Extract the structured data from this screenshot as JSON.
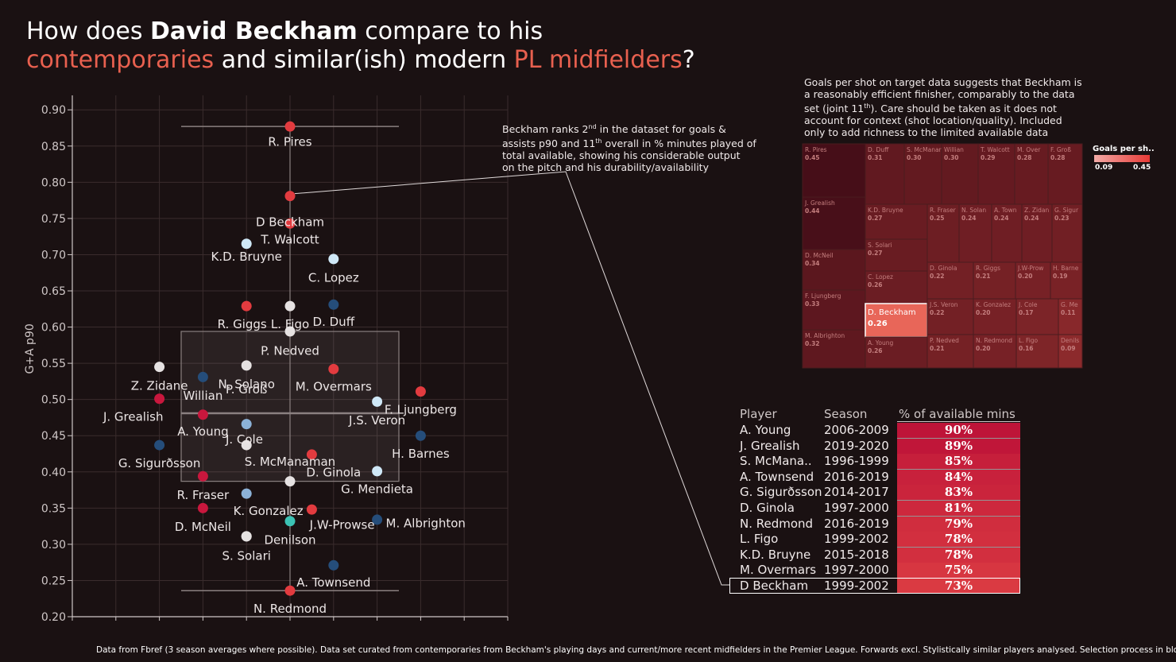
{
  "title": {
    "line1_pre": "How does ",
    "line1_bold": "David Beckham",
    "line1_post": " compare to his",
    "line2_acc1": "contemporaries",
    "line2_mid": " and similar(ish) modern ",
    "line2_acc2": "PL midfielders",
    "line2_end": "?"
  },
  "colors": {
    "background": "#1a1112",
    "accent": "#e8604f",
    "red": "#e23b3f",
    "crimson": "#c8173d",
    "navy": "#254d7a",
    "light_blue": "#cfe8f7",
    "white": "#e6e2e2",
    "teal": "#3cc3b5",
    "steel": "#8cb2d8"
  },
  "chart_data": {
    "type": "scatter",
    "ylabel": "G+A p90",
    "xlabel": "",
    "ylim": [
      0.2,
      0.92
    ],
    "xlim": [
      -5,
      5
    ],
    "yticks": [
      "0.20",
      "0.25",
      "0.30",
      "0.35",
      "0.40",
      "0.45",
      "0.50",
      "0.55",
      "0.60",
      "0.65",
      "0.70",
      "0.75",
      "0.80",
      "0.85",
      "0.90"
    ],
    "grid": true,
    "points": [
      {
        "name": "R. Pires",
        "x": 0,
        "y": 0.877,
        "color": "red",
        "label_dx": 0,
        "label_dy": 0.021,
        "anchor": "middle"
      },
      {
        "name": "D Beckham",
        "x": 0,
        "y": 0.781,
        "color": "red",
        "label_dx": 0,
        "label_dy": 0.036,
        "anchor": "middle"
      },
      {
        "name": "T. Walcott",
        "x": 0,
        "y": 0.743,
        "color": "red",
        "label_dx": 0,
        "label_dy": 0.022,
        "anchor": "middle"
      },
      {
        "name": "K.D. Bruyne",
        "x": -1,
        "y": 0.715,
        "color": "light_blue",
        "label_dx": 0,
        "label_dy": 0.018,
        "anchor": "middle"
      },
      {
        "name": "C. Lopez",
        "x": 1,
        "y": 0.694,
        "color": "light_blue",
        "label_dx": 0,
        "label_dy": 0.026,
        "anchor": "middle"
      },
      {
        "name": "R. Giggs",
        "x": -1,
        "y": 0.629,
        "color": "red",
        "label_dx": -0.1,
        "label_dy": 0.025,
        "anchor": "middle"
      },
      {
        "name": "L. Figo",
        "x": 0,
        "y": 0.629,
        "color": "white",
        "label_dx": 0,
        "label_dy": 0.025,
        "anchor": "middle"
      },
      {
        "name": "D. Duff",
        "x": 1,
        "y": 0.631,
        "color": "navy",
        "label_dx": 0,
        "label_dy": 0.024,
        "anchor": "middle"
      },
      {
        "name": "P. Nedved",
        "x": 0,
        "y": 0.594,
        "color": "white",
        "label_dx": 0,
        "label_dy": 0.027,
        "anchor": "middle"
      },
      {
        "name": "Z. Zidane",
        "x": -3,
        "y": 0.545,
        "color": "white",
        "label_dx": 0,
        "label_dy": 0.026,
        "anchor": "middle"
      },
      {
        "name": "N. Solano",
        "x": -1,
        "y": 0.547,
        "color": "white",
        "label_dx": 0,
        "label_dy": 0.026,
        "anchor": "middle"
      },
      {
        "name": "Willian",
        "x": -2,
        "y": 0.531,
        "color": "navy",
        "label_dx": 0,
        "label_dy": 0.026,
        "anchor": "middle"
      },
      {
        "name": "M. Overmars",
        "x": 1,
        "y": 0.542,
        "color": "red",
        "label_dx": 0,
        "label_dy": 0.024,
        "anchor": "middle"
      },
      {
        "name": "F. Ljungberg",
        "x": 3,
        "y": 0.511,
        "color": "red",
        "label_dx": 0,
        "label_dy": 0.025,
        "anchor": "middle"
      },
      {
        "name": "J. Grealish",
        "x": -3,
        "y": 0.501,
        "color": "crimson",
        "label_dx": -0.6,
        "label_dy": 0.025,
        "anchor": "middle"
      },
      {
        "name": "J.S. Veron",
        "x": 2,
        "y": 0.497,
        "color": "light_blue",
        "label_dx": 0,
        "label_dy": 0.026,
        "anchor": "middle"
      },
      {
        "name": "A. Young",
        "x": -2,
        "y": 0.479,
        "color": "crimson",
        "label_dx": 0,
        "label_dy": 0.023,
        "anchor": "middle"
      },
      {
        "name": "J. Cole",
        "x": -1,
        "y": 0.466,
        "color": "steel",
        "label_dx": -0.05,
        "label_dy": 0.021,
        "anchor": "middle"
      },
      {
        "name": "H. Barnes",
        "x": 3,
        "y": 0.45,
        "color": "navy",
        "label_dx": 0,
        "label_dy": 0.025,
        "anchor": "middle"
      },
      {
        "name": "G. Sigurðsson",
        "x": -3,
        "y": 0.437,
        "color": "navy",
        "label_dx": 0,
        "label_dy": 0.025,
        "anchor": "middle"
      },
      {
        "name": "D. Ginola",
        "x": 0.5,
        "y": 0.424,
        "color": "red",
        "label_dx": 0.5,
        "label_dy": 0.025,
        "anchor": "middle"
      },
      {
        "name": "S. McManaman",
        "x": 0,
        "y": 0.387,
        "color": "white",
        "label_dx": 0,
        "label_dy": -0.027,
        "anchor": "middle"
      },
      {
        "name": "G. Mendieta",
        "x": 2,
        "y": 0.401,
        "color": "light_blue",
        "label_dx": 0,
        "label_dy": 0.025,
        "anchor": "middle"
      },
      {
        "name": "R. Fraser",
        "x": -2,
        "y": 0.394,
        "color": "crimson",
        "label_dx": 0,
        "label_dy": 0.026,
        "anchor": "middle"
      },
      {
        "name": "K. Gonzalez",
        "x": -1,
        "y": 0.37,
        "color": "steel",
        "label_dx": 0.5,
        "label_dy": 0.024,
        "anchor": "middle"
      },
      {
        "name": "P. Groß",
        "x": -1,
        "y": 0.437,
        "color": "white",
        "label_dx": 0,
        "label_dy": -0.077,
        "anchor": "middle"
      },
      {
        "name": "D. McNeil",
        "x": -2,
        "y": 0.35,
        "color": "crimson",
        "label_dx": 0,
        "label_dy": 0.026,
        "anchor": "middle"
      },
      {
        "name": "J.W-Prowse",
        "x": 0,
        "y": 0.332,
        "color": "teal",
        "label_dx": 0.45,
        "label_dy": 0.005,
        "anchor": "start"
      },
      {
        "name": "M. Albrighton",
        "x": 2,
        "y": 0.334,
        "color": "navy",
        "label_dx": 0.2,
        "label_dy": 0.005,
        "anchor": "start"
      },
      {
        "name": "Denilson",
        "x": -1,
        "y": 0.311,
        "color": "white",
        "label_dx": 1,
        "label_dy": 0.005,
        "anchor": "middle"
      },
      {
        "name": "S. Solari",
        "x": -1,
        "y": 0.311,
        "color": "white",
        "label_dx": 0,
        "label_dy": 0.027,
        "anchor": "middle"
      },
      {
        "name": "A. Townsend",
        "x": 1,
        "y": 0.271,
        "color": "navy",
        "label_dx": 0,
        "label_dy": 0.024,
        "anchor": "middle"
      },
      {
        "name": "N. Redmond",
        "x": 0,
        "y": 0.236,
        "color": "red",
        "label_dx": 0,
        "label_dy": 0.025,
        "anchor": "middle"
      }
    ],
    "extra_markers": [
      {
        "x": 0.5,
        "y": 0.348,
        "color": "red"
      }
    ],
    "whisker_lines": [
      {
        "y": 0.877,
        "x_from": -2.5,
        "x_to": 2.5
      },
      {
        "y": 0.236,
        "x_from": -2.5,
        "x_to": 2.5
      }
    ],
    "iqr_box": {
      "y_low": 0.387,
      "y_high": 0.594,
      "median": 0.481,
      "x_from": -2.5,
      "x_to": 2.5
    },
    "callout": "Beckham ranks 2nd in the dataset for goals & assists p90 and 11th overall in % minutes played of total available, showing his considerable output on the pitch and his durability/availability"
  },
  "annotation_beckham": {
    "line1a": "Beckham ranks 2",
    "sup1": "nd",
    "line1b": " in the dataset for goals &",
    "line2a": "assists p90 and 11",
    "sup2": "th",
    "line2b": " overall in % minutes played of",
    "line3": "total available, showing his considerable output",
    "line4": "on the pitch and his durability/availability"
  },
  "annotation_treemap": {
    "line1": "Goals per shot on target data suggests that Beckham is",
    "line2": "a reasonably efficient finisher, comparably to the data",
    "line3a": "set (joint 11",
    "sup3": "th",
    "line3b": "). Care should be taken as it does not",
    "line4": "account for context (shot location/quality). Included",
    "line5": "only to add richness to the limited available data"
  },
  "treemap": {
    "legend_title": "Goals per sh..",
    "legend_min": "0.09",
    "legend_max": "0.45",
    "cells": [
      {
        "name": "R. Pires",
        "value": 0.45,
        "col": 0,
        "row": 0,
        "highlight": false
      },
      {
        "name": "J. Grealish",
        "value": 0.44,
        "col": 0,
        "row": 1,
        "highlight": false
      },
      {
        "name": "D. McNeil",
        "value": 0.34,
        "col": 0,
        "row": 2,
        "highlight": false
      },
      {
        "name": "F. Ljungberg",
        "value": 0.33,
        "col": 0,
        "row": 3,
        "highlight": false
      },
      {
        "name": "M. Albrighton",
        "value": 0.32,
        "col": 0,
        "row": 4,
        "highlight": false
      },
      {
        "name": "D. Duff",
        "value": 0.31,
        "col": 1,
        "row": 0,
        "highlight": false
      },
      {
        "name": "S. McManaman",
        "value": 0.3,
        "col": 1,
        "row": 0,
        "highlight": false
      },
      {
        "name": "Willian",
        "value": 0.3,
        "col": 1,
        "row": 0,
        "highlight": false
      },
      {
        "name": "T. Walcott",
        "value": 0.29,
        "col": 1,
        "row": 0,
        "highlight": false
      },
      {
        "name": "M. Over",
        "value": 0.28,
        "col": 1,
        "row": 0,
        "highlight": false
      },
      {
        "name": "F. Groß",
        "value": 0.28,
        "col": 1,
        "row": 0,
        "highlight": false
      },
      {
        "name": "K.D. Bruyne",
        "value": 0.27,
        "col": 1,
        "row": 1,
        "highlight": false
      },
      {
        "name": "S. Solari",
        "value": 0.27,
        "col": 1,
        "row": 1,
        "highlight": false
      },
      {
        "name": "C. Lopez",
        "value": 0.26,
        "col": 1,
        "row": 1,
        "highlight": false
      },
      {
        "name": "D. Beckham",
        "value": 0.26,
        "col": 1,
        "row": 2,
        "highlight": true
      },
      {
        "name": "A. Young",
        "value": 0.26,
        "col": 1,
        "row": 2,
        "highlight": false
      },
      {
        "name": "R. Fraser",
        "value": 0.25,
        "col": 2,
        "row": 1,
        "highlight": false
      },
      {
        "name": "N. Solan",
        "value": 0.24,
        "col": 2,
        "row": 1,
        "highlight": false
      },
      {
        "name": "A. Town",
        "value": 0.24,
        "col": 2,
        "row": 1,
        "highlight": false
      },
      {
        "name": "Z. Zidan",
        "value": 0.24,
        "col": 2,
        "row": 1,
        "highlight": false
      },
      {
        "name": "G. Sigur",
        "value": 0.23,
        "col": 2,
        "row": 1,
        "highlight": false
      },
      {
        "name": "D. Ginola",
        "value": 0.22,
        "col": 2,
        "row": 2,
        "highlight": false
      },
      {
        "name": "R. Giggs",
        "value": 0.21,
        "col": 2,
        "row": 2,
        "highlight": false
      },
      {
        "name": "J.W-Prow",
        "value": 0.2,
        "col": 2,
        "row": 2,
        "highlight": false
      },
      {
        "name": "H. Barne",
        "value": 0.19,
        "col": 2,
        "row": 2,
        "highlight": false
      },
      {
        "name": "J.S. Veron",
        "value": 0.22,
        "col": 2,
        "row": 3,
        "highlight": false
      },
      {
        "name": "K. Gonzalez",
        "value": 0.2,
        "col": 2,
        "row": 3,
        "highlight": false
      },
      {
        "name": "J. Cole",
        "value": 0.17,
        "col": 2,
        "row": 3,
        "highlight": false
      },
      {
        "name": "G. Me",
        "value": 0.11,
        "col": 2,
        "row": 3,
        "highlight": false
      },
      {
        "name": "P. Nedved",
        "value": 0.21,
        "col": 2,
        "row": 4,
        "highlight": false
      },
      {
        "name": "N. Redmond",
        "value": 0.2,
        "col": 2,
        "row": 4,
        "highlight": false
      },
      {
        "name": "L. Figo",
        "value": 0.16,
        "col": 2,
        "row": 4,
        "highlight": false
      },
      {
        "name": "Denils",
        "value": 0.09,
        "col": 2,
        "row": 4,
        "highlight": false
      }
    ]
  },
  "table": {
    "headers": [
      "Player",
      "Season",
      "% of available mins"
    ],
    "rows": [
      {
        "player": "A. Young",
        "season": "2006-2009",
        "pct": 90,
        "label": "90%",
        "highlight": false
      },
      {
        "player": "J. Grealish",
        "season": "2019-2020",
        "pct": 89,
        "label": "89%",
        "highlight": false
      },
      {
        "player": "S. McMana..",
        "season": "1996-1999",
        "pct": 85,
        "label": "85%",
        "highlight": false
      },
      {
        "player": "A. Townsend",
        "season": "2016-2019",
        "pct": 84,
        "label": "84%",
        "highlight": false
      },
      {
        "player": "G. Sigurðsson",
        "season": "2014-2017",
        "pct": 83,
        "label": "83%",
        "highlight": false
      },
      {
        "player": "D. Ginola",
        "season": "1997-2000",
        "pct": 81,
        "label": "81%",
        "highlight": false
      },
      {
        "player": "N. Redmond",
        "season": "2016-2019",
        "pct": 79,
        "label": "79%",
        "highlight": false
      },
      {
        "player": "L. Figo",
        "season": "1999-2002",
        "pct": 78,
        "label": "78%",
        "highlight": false
      },
      {
        "player": "K.D. Bruyne",
        "season": "2015-2018",
        "pct": 78,
        "label": "78%",
        "highlight": false
      },
      {
        "player": "M. Overmars",
        "season": "1997-2000",
        "pct": 75,
        "label": "75%",
        "highlight": false
      },
      {
        "player": "D Beckham",
        "season": "1999-2002",
        "pct": 73,
        "label": "73%",
        "highlight": true
      }
    ]
  },
  "footer": "Data from Fbref (3 season averages where possible). Data set curated from contemporaries from Beckham's playing days and current/more recent midfielders in the Premier League. Forwards excl. Stylistically similar players analysed. Selection process in blog"
}
